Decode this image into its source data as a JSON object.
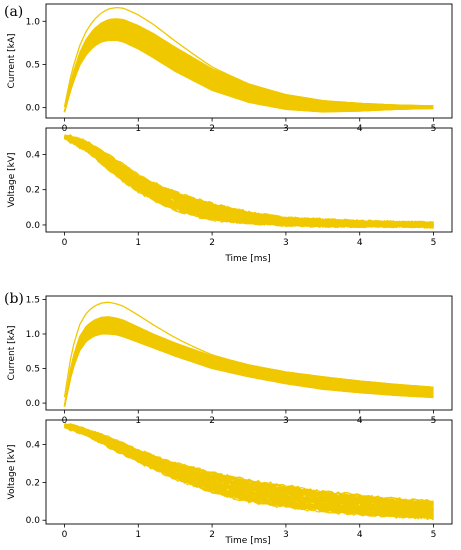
{
  "panels": [
    {
      "label": "(a)",
      "xlabel": "Time [ms]"
    },
    {
      "label": "(b)",
      "xlabel": "Time [ms]"
    }
  ],
  "chart_data": [
    {
      "type": "line",
      "panel": "(a)",
      "ylabel": "Current [kA]",
      "xlabel": "",
      "xlim": [
        -0.25,
        5.25
      ],
      "ylim": [
        -0.12,
        1.2
      ],
      "xticks": [
        0,
        1,
        2,
        3,
        4,
        5
      ],
      "yticks": [
        0.0,
        0.5,
        1.0
      ],
      "ytick_labels": [
        "0.0",
        "0.5",
        "1.0"
      ],
      "grid": false,
      "line_color": "#f0c800",
      "n_curves": 60,
      "x": [
        0,
        0.1,
        0.2,
        0.3,
        0.4,
        0.5,
        0.6,
        0.7,
        0.8,
        1.0,
        1.2,
        1.5,
        2.0,
        2.5,
        3.0,
        3.5,
        4.0,
        4.5,
        5.0
      ],
      "envelope_upper": [
        -0.05,
        0.35,
        0.62,
        0.8,
        0.91,
        0.98,
        1.02,
        1.03,
        1.02,
        0.95,
        0.86,
        0.7,
        0.45,
        0.27,
        0.15,
        0.08,
        0.05,
        0.03,
        0.02
      ],
      "envelope_lower": [
        -0.05,
        0.25,
        0.48,
        0.62,
        0.71,
        0.76,
        0.78,
        0.78,
        0.76,
        0.68,
        0.58,
        0.42,
        0.2,
        0.06,
        -0.02,
        -0.05,
        -0.04,
        -0.02,
        -0.01
      ],
      "outlier_max": {
        "x": 0.8,
        "y": 1.15
      }
    },
    {
      "type": "line",
      "panel": "(a)",
      "ylabel": "Voltage [kV]",
      "xlabel": "Time [ms]",
      "xlim": [
        -0.25,
        5.25
      ],
      "ylim": [
        -0.04,
        0.55
      ],
      "xticks": [
        0,
        1,
        2,
        3,
        4,
        5
      ],
      "yticks": [
        0.0,
        0.2,
        0.4
      ],
      "ytick_labels": [
        "0.0",
        "0.2",
        "0.4"
      ],
      "grid": false,
      "line_color": "#f0c800",
      "n_curves": 60,
      "noisy": true,
      "x": [
        0,
        0.1,
        0.3,
        0.5,
        0.8,
        1.0,
        1.3,
        1.6,
        2.0,
        2.5,
        3.0,
        3.5,
        4.0,
        4.5,
        5.0
      ],
      "envelope_upper": [
        0.51,
        0.5,
        0.47,
        0.42,
        0.34,
        0.28,
        0.22,
        0.17,
        0.12,
        0.07,
        0.04,
        0.03,
        0.02,
        0.015,
        0.01
      ],
      "envelope_lower": [
        0.49,
        0.47,
        0.42,
        0.35,
        0.25,
        0.19,
        0.12,
        0.07,
        0.03,
        0.01,
        0.0,
        -0.005,
        -0.005,
        -0.005,
        -0.01
      ]
    },
    {
      "type": "line",
      "panel": "(b)",
      "ylabel": "Current [kA]",
      "xlabel": "",
      "xlim": [
        -0.25,
        5.25
      ],
      "ylim": [
        -0.1,
        1.55
      ],
      "xticks": [
        0,
        1,
        2,
        3,
        4,
        5
      ],
      "yticks": [
        0.0,
        0.5,
        1.0,
        1.5
      ],
      "ytick_labels": [
        "0.0",
        "0.5",
        "1.0",
        "1.5"
      ],
      "grid": false,
      "line_color": "#f0c800",
      "n_curves": 60,
      "x": [
        0,
        0.1,
        0.2,
        0.3,
        0.4,
        0.5,
        0.6,
        0.7,
        0.8,
        1.0,
        1.2,
        1.5,
        2.0,
        2.5,
        3.0,
        3.5,
        4.0,
        4.5,
        5.0
      ],
      "envelope_upper": [
        -0.05,
        0.6,
        0.95,
        1.12,
        1.2,
        1.24,
        1.25,
        1.23,
        1.2,
        1.1,
        1.0,
        0.87,
        0.68,
        0.55,
        0.45,
        0.38,
        0.32,
        0.27,
        0.23
      ],
      "envelope_lower": [
        -0.05,
        0.45,
        0.75,
        0.9,
        0.97,
        1.0,
        1.0,
        0.99,
        0.96,
        0.88,
        0.8,
        0.68,
        0.5,
        0.38,
        0.28,
        0.2,
        0.15,
        0.11,
        0.08
      ],
      "outlier_max": {
        "x": 0.6,
        "y": 1.46
      }
    },
    {
      "type": "line",
      "panel": "(b)",
      "ylabel": "Voltage [kV]",
      "xlabel": "Time [ms]",
      "xlim": [
        -0.25,
        5.25
      ],
      "ylim": [
        -0.02,
        0.53
      ],
      "xticks": [
        0,
        1,
        2,
        3,
        4,
        5
      ],
      "yticks": [
        0.0,
        0.2,
        0.4
      ],
      "ytick_labels": [
        "0.0",
        "0.2",
        "0.4"
      ],
      "grid": false,
      "line_color": "#f0c800",
      "n_curves": 60,
      "noisy": true,
      "x": [
        0,
        0.1,
        0.3,
        0.5,
        1.0,
        1.5,
        2.0,
        2.5,
        3.0,
        3.5,
        4.0,
        4.5,
        5.0
      ],
      "envelope_upper": [
        0.51,
        0.5,
        0.48,
        0.45,
        0.37,
        0.3,
        0.25,
        0.21,
        0.18,
        0.15,
        0.13,
        0.11,
        0.1
      ],
      "envelope_lower": [
        0.49,
        0.48,
        0.45,
        0.41,
        0.31,
        0.22,
        0.15,
        0.1,
        0.07,
        0.05,
        0.03,
        0.02,
        0.01
      ]
    }
  ]
}
